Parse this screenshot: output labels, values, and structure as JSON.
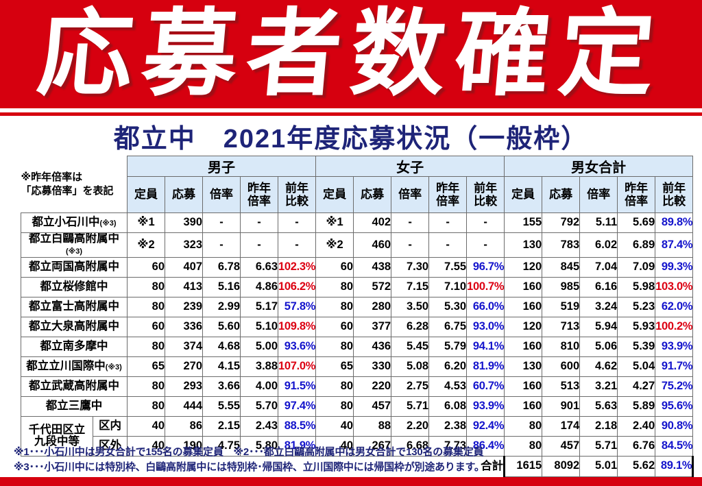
{
  "page": {
    "title": "応募者数確定",
    "subtitle": "都立中　2021年度応募状況（一般枠）"
  },
  "side_note": {
    "line1": "※昨年倍率は",
    "line2": "「応募倍率」を表記"
  },
  "table": {
    "groups": [
      "男子",
      "女子",
      "男女合計"
    ],
    "sub_headers": [
      "定員",
      "応募",
      "倍率",
      "昨年\n倍率",
      "前年\n比較"
    ],
    "rows": [
      {
        "school": "都立小石川中",
        "suffix": "(※3)",
        "boys": [
          "※1",
          "390",
          "-",
          "-",
          "-"
        ],
        "girls": [
          "※1",
          "402",
          "-",
          "-",
          "-"
        ],
        "total": [
          "155",
          "792",
          "5.11",
          "5.69",
          "89.8%"
        ]
      },
      {
        "school": "都立白鷗高附属中",
        "suffix": "(※3)",
        "boys": [
          "※2",
          "323",
          "-",
          "-",
          "-"
        ],
        "girls": [
          "※2",
          "460",
          "-",
          "-",
          "-"
        ],
        "total": [
          "130",
          "783",
          "6.02",
          "6.89",
          "87.4%"
        ]
      },
      {
        "school": "都立両国高附属中",
        "suffix": "",
        "boys": [
          "60",
          "407",
          "6.78",
          "6.63",
          "102.3%"
        ],
        "girls": [
          "60",
          "438",
          "7.30",
          "7.55",
          "96.7%"
        ],
        "total": [
          "120",
          "845",
          "7.04",
          "7.09",
          "99.3%"
        ]
      },
      {
        "school": "都立桜修館中",
        "suffix": "",
        "boys": [
          "80",
          "413",
          "5.16",
          "4.86",
          "106.2%"
        ],
        "girls": [
          "80",
          "572",
          "7.15",
          "7.10",
          "100.7%"
        ],
        "total": [
          "160",
          "985",
          "6.16",
          "5.98",
          "103.0%"
        ]
      },
      {
        "school": "都立富士高附属中",
        "suffix": "",
        "boys": [
          "80",
          "239",
          "2.99",
          "5.17",
          "57.8%"
        ],
        "girls": [
          "80",
          "280",
          "3.50",
          "5.30",
          "66.0%"
        ],
        "total": [
          "160",
          "519",
          "3.24",
          "5.23",
          "62.0%"
        ]
      },
      {
        "school": "都立大泉高附属中",
        "suffix": "",
        "boys": [
          "60",
          "336",
          "5.60",
          "5.10",
          "109.8%"
        ],
        "girls": [
          "60",
          "377",
          "6.28",
          "6.75",
          "93.0%"
        ],
        "total": [
          "120",
          "713",
          "5.94",
          "5.93",
          "100.2%"
        ]
      },
      {
        "school": "都立南多摩中",
        "suffix": "",
        "boys": [
          "80",
          "374",
          "4.68",
          "5.00",
          "93.6%"
        ],
        "girls": [
          "80",
          "436",
          "5.45",
          "5.79",
          "94.1%"
        ],
        "total": [
          "160",
          "810",
          "5.06",
          "5.39",
          "93.9%"
        ]
      },
      {
        "school": "都立立川国際中",
        "suffix": "(※3)",
        "boys": [
          "65",
          "270",
          "4.15",
          "3.88",
          "107.0%"
        ],
        "girls": [
          "65",
          "330",
          "5.08",
          "6.20",
          "81.9%"
        ],
        "total": [
          "130",
          "600",
          "4.62",
          "5.04",
          "91.7%"
        ]
      },
      {
        "school": "都立武蔵高附属中",
        "suffix": "",
        "boys": [
          "80",
          "293",
          "3.66",
          "4.00",
          "91.5%"
        ],
        "girls": [
          "80",
          "220",
          "2.75",
          "4.53",
          "60.7%"
        ],
        "total": [
          "160",
          "513",
          "3.21",
          "4.27",
          "75.2%"
        ]
      },
      {
        "school": "都立三鷹中",
        "suffix": "",
        "boys": [
          "80",
          "444",
          "5.55",
          "5.70",
          "97.4%"
        ],
        "girls": [
          "80",
          "457",
          "5.71",
          "6.08",
          "93.9%"
        ],
        "total": [
          "160",
          "901",
          "5.63",
          "5.89",
          "95.6%"
        ]
      },
      {
        "school_lines": [
          "千代田区立",
          "九段中等"
        ],
        "rowspan": 2,
        "sub": "区内",
        "boys": [
          "40",
          "86",
          "2.15",
          "2.43",
          "88.5%"
        ],
        "girls": [
          "40",
          "88",
          "2.20",
          "2.38",
          "92.4%"
        ],
        "total": [
          "80",
          "174",
          "2.18",
          "2.40",
          "90.8%"
        ]
      },
      {
        "sub": "区外",
        "boys": [
          "40",
          "190",
          "4.75",
          "5.80",
          "81.9%"
        ],
        "girls": [
          "40",
          "267",
          "6.68",
          "7.73",
          "86.4%"
        ],
        "total": [
          "80",
          "457",
          "5.71",
          "6.76",
          "84.5%"
        ]
      }
    ],
    "total_row": {
      "label": "合計",
      "values": [
        "1615",
        "8092",
        "5.01",
        "5.62",
        "89.1%"
      ]
    }
  },
  "footnotes": [
    "※1･･･小石川中は男女合計で155名の募集定員　※2･･･都立白鷗高附属中は男女合計で130名の募集定員",
    "※3･･･小石川中には特別枠、白鷗高附属中には特別枠･帰国枠、立川国際中には帰国枠が別途あります。"
  ],
  "colors": {
    "banner_red": "#d6000f",
    "header_fill": "#d9e9f8",
    "navy": "#1e2478",
    "up_red": "#dc0012",
    "down_blue": "#1414cc",
    "grid_gray": "#6b6b6b"
  }
}
